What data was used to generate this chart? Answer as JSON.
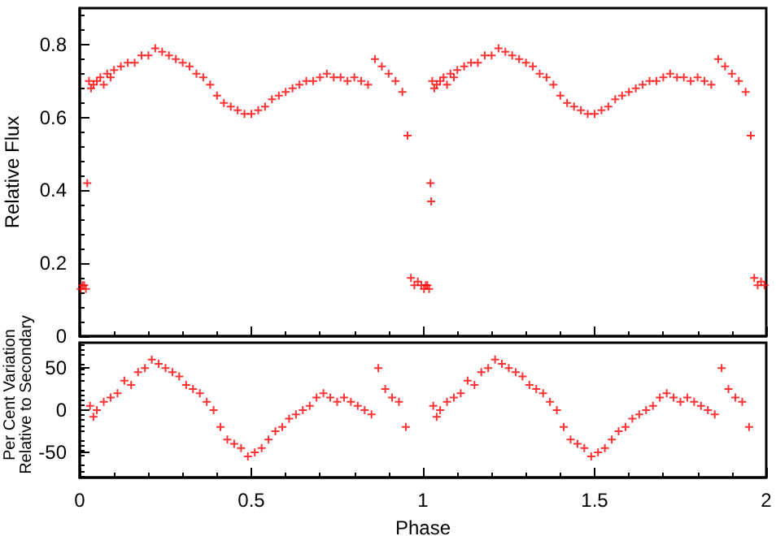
{
  "chart_data": [
    {
      "type": "scatter",
      "ylabel": "Relative Flux",
      "marker": "cross",
      "grid": false,
      "tick_labels": "y",
      "xlim": [
        0,
        2
      ],
      "xticks": [
        0,
        0.5,
        1,
        1.5,
        2
      ],
      "ylim": [
        0,
        0.9
      ],
      "yticks": [
        0,
        0.2,
        0.4,
        0.6,
        0.8
      ],
      "series": [
        {
          "color": "#ff0000",
          "x": [
            0.003,
            0.008,
            0.013,
            0.018,
            0.022,
            0.027,
            0.033,
            0.04,
            0.05,
            0.06,
            0.07,
            0.08,
            0.09,
            0.1,
            0.12,
            0.14,
            0.16,
            0.18,
            0.2,
            0.22,
            0.24,
            0.26,
            0.28,
            0.3,
            0.32,
            0.34,
            0.36,
            0.38,
            0.4,
            0.42,
            0.44,
            0.46,
            0.48,
            0.5,
            0.52,
            0.54,
            0.56,
            0.58,
            0.6,
            0.62,
            0.64,
            0.66,
            0.68,
            0.7,
            0.72,
            0.74,
            0.76,
            0.78,
            0.8,
            0.82,
            0.84,
            0.86,
            0.88,
            0.9,
            0.92,
            0.94,
            0.955,
            0.965,
            0.975,
            0.985,
            0.995,
            1.003,
            1.008,
            1.013,
            1.018,
            1.022,
            1.024,
            1.027,
            1.033,
            1.04,
            1.05,
            1.06,
            1.07,
            1.08,
            1.09,
            1.1,
            1.12,
            1.14,
            1.16,
            1.18,
            1.2,
            1.22,
            1.24,
            1.26,
            1.28,
            1.3,
            1.32,
            1.34,
            1.36,
            1.38,
            1.4,
            1.42,
            1.44,
            1.46,
            1.48,
            1.5,
            1.52,
            1.54,
            1.56,
            1.58,
            1.6,
            1.62,
            1.64,
            1.66,
            1.68,
            1.7,
            1.72,
            1.74,
            1.76,
            1.78,
            1.8,
            1.82,
            1.84,
            1.86,
            1.88,
            1.9,
            1.92,
            1.94,
            1.955,
            1.965,
            1.975,
            1.985,
            1.995
          ],
          "values": [
            0.13,
            0.14,
            0.14,
            0.13,
            0.42,
            0.7,
            0.68,
            0.69,
            0.7,
            0.71,
            0.69,
            0.72,
            0.71,
            0.73,
            0.74,
            0.75,
            0.75,
            0.77,
            0.77,
            0.79,
            0.78,
            0.77,
            0.76,
            0.75,
            0.74,
            0.72,
            0.71,
            0.69,
            0.66,
            0.64,
            0.63,
            0.62,
            0.61,
            0.61,
            0.62,
            0.63,
            0.65,
            0.66,
            0.67,
            0.68,
            0.69,
            0.7,
            0.7,
            0.71,
            0.72,
            0.71,
            0.71,
            0.7,
            0.71,
            0.7,
            0.69,
            0.76,
            0.74,
            0.72,
            0.7,
            0.67,
            0.55,
            0.16,
            0.14,
            0.15,
            0.14,
            0.13,
            0.14,
            0.14,
            0.13,
            0.42,
            0.37,
            0.7,
            0.68,
            0.69,
            0.7,
            0.71,
            0.69,
            0.72,
            0.71,
            0.73,
            0.74,
            0.75,
            0.75,
            0.77,
            0.77,
            0.79,
            0.78,
            0.77,
            0.76,
            0.75,
            0.74,
            0.72,
            0.71,
            0.69,
            0.66,
            0.64,
            0.63,
            0.62,
            0.61,
            0.61,
            0.62,
            0.63,
            0.65,
            0.66,
            0.67,
            0.68,
            0.69,
            0.7,
            0.7,
            0.71,
            0.72,
            0.71,
            0.71,
            0.7,
            0.71,
            0.7,
            0.69,
            0.76,
            0.74,
            0.72,
            0.7,
            0.67,
            0.55,
            0.16,
            0.14,
            0.15,
            0.14
          ]
        }
      ]
    },
    {
      "type": "scatter",
      "xlabel": "Phase",
      "ylabel": "Per Cent Variation Relative to Secondary",
      "marker": "cross",
      "grid": false,
      "xlim": [
        0,
        2
      ],
      "xticks": [
        0,
        0.5,
        1,
        1.5,
        2
      ],
      "ylim": [
        -80,
        80
      ],
      "yticks": [
        -50,
        0,
        50
      ],
      "series": [
        {
          "color": "#ff0000",
          "x": [
            0.03,
            0.04,
            0.05,
            0.07,
            0.09,
            0.11,
            0.13,
            0.15,
            0.17,
            0.19,
            0.21,
            0.23,
            0.25,
            0.27,
            0.29,
            0.31,
            0.33,
            0.35,
            0.37,
            0.39,
            0.41,
            0.43,
            0.45,
            0.47,
            0.49,
            0.51,
            0.53,
            0.55,
            0.57,
            0.59,
            0.61,
            0.63,
            0.65,
            0.67,
            0.69,
            0.71,
            0.73,
            0.75,
            0.77,
            0.79,
            0.81,
            0.83,
            0.85,
            0.87,
            0.89,
            0.91,
            0.93,
            0.95,
            1.03,
            1.04,
            1.05,
            1.07,
            1.09,
            1.11,
            1.13,
            1.15,
            1.17,
            1.19,
            1.21,
            1.23,
            1.25,
            1.27,
            1.29,
            1.31,
            1.33,
            1.35,
            1.37,
            1.39,
            1.41,
            1.43,
            1.45,
            1.47,
            1.49,
            1.51,
            1.53,
            1.55,
            1.57,
            1.59,
            1.61,
            1.63,
            1.65,
            1.67,
            1.69,
            1.71,
            1.73,
            1.75,
            1.77,
            1.79,
            1.81,
            1.83,
            1.85,
            1.87,
            1.89,
            1.91,
            1.93,
            1.95
          ],
          "values": [
            5,
            -8,
            0,
            10,
            15,
            20,
            35,
            30,
            45,
            50,
            60,
            55,
            50,
            45,
            40,
            30,
            25,
            20,
            10,
            0,
            -20,
            -35,
            -40,
            -45,
            -55,
            -50,
            -45,
            -35,
            -25,
            -20,
            -10,
            -5,
            0,
            5,
            15,
            20,
            15,
            10,
            15,
            10,
            5,
            0,
            -5,
            50,
            25,
            15,
            10,
            -20,
            5,
            -8,
            0,
            10,
            15,
            20,
            35,
            30,
            45,
            50,
            60,
            55,
            50,
            45,
            40,
            30,
            25,
            20,
            10,
            0,
            -20,
            -35,
            -40,
            -45,
            -55,
            -50,
            -45,
            -35,
            -25,
            -20,
            -10,
            -5,
            0,
            5,
            15,
            20,
            15,
            10,
            15,
            10,
            5,
            0,
            -5,
            50,
            25,
            15,
            10,
            -20
          ]
        }
      ]
    }
  ]
}
